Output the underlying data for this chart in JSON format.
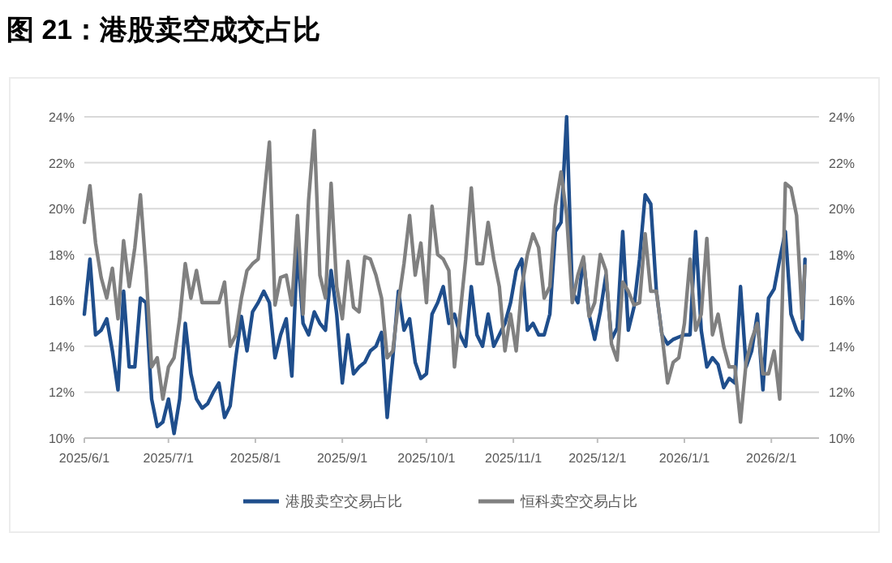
{
  "chart_data": {
    "type": "line",
    "title": "图 21：港股卖空成交占比",
    "x": [
      "2025-06-01",
      "2025-06-03",
      "2025-06-05",
      "2025-06-07",
      "2025-06-09",
      "2025-06-11",
      "2025-06-13",
      "2025-06-15",
      "2025-06-17",
      "2025-06-19",
      "2025-06-21",
      "2025-06-23",
      "2025-06-25",
      "2025-06-27",
      "2025-06-29",
      "2025-07-01",
      "2025-07-03",
      "2025-07-05",
      "2025-07-07",
      "2025-07-09",
      "2025-07-11",
      "2025-07-13",
      "2025-07-15",
      "2025-07-17",
      "2025-07-19",
      "2025-07-21",
      "2025-07-23",
      "2025-07-25",
      "2025-07-27",
      "2025-07-29",
      "2025-07-31",
      "2025-08-02",
      "2025-08-04",
      "2025-08-06",
      "2025-08-08",
      "2025-08-10",
      "2025-08-12",
      "2025-08-14",
      "2025-08-16",
      "2025-08-18",
      "2025-08-20",
      "2025-08-22",
      "2025-08-24",
      "2025-08-26",
      "2025-08-28",
      "2025-08-30",
      "2025-09-01",
      "2025-09-03",
      "2025-09-05",
      "2025-09-07",
      "2025-09-09",
      "2025-09-11",
      "2025-09-13",
      "2025-09-15",
      "2025-09-17",
      "2025-09-19",
      "2025-09-21",
      "2025-09-23",
      "2025-09-25",
      "2025-09-27",
      "2025-09-29",
      "2025-10-01",
      "2025-10-03",
      "2025-10-05",
      "2025-10-07",
      "2025-10-09",
      "2025-10-11",
      "2025-10-13",
      "2025-10-15",
      "2025-10-17",
      "2025-10-19",
      "2025-10-21",
      "2025-10-23",
      "2025-10-25",
      "2025-10-27",
      "2025-10-29",
      "2025-10-31",
      "2025-11-02",
      "2025-11-04",
      "2025-11-06",
      "2025-11-08",
      "2025-11-10",
      "2025-11-12",
      "2025-11-14",
      "2025-11-16",
      "2025-11-18",
      "2025-11-20",
      "2025-11-22",
      "2025-11-24",
      "2025-11-26",
      "2025-11-28",
      "2025-11-30",
      "2025-12-02",
      "2025-12-04",
      "2025-12-06",
      "2025-12-08",
      "2025-12-10",
      "2025-12-12",
      "2025-12-14",
      "2025-12-16",
      "2025-12-18",
      "2025-12-20",
      "2025-12-22",
      "2025-12-24",
      "2025-12-26",
      "2025-12-28",
      "2025-12-30",
      "2026-01-01",
      "2026-01-03",
      "2026-01-05",
      "2026-01-07",
      "2026-01-09",
      "2026-01-11",
      "2026-01-13",
      "2026-01-15",
      "2026-01-17",
      "2026-01-19",
      "2026-01-21",
      "2026-01-23",
      "2026-01-25",
      "2026-01-27",
      "2026-01-29",
      "2026-01-31",
      "2026-02-02",
      "2026-02-04",
      "2026-02-06",
      "2026-02-08",
      "2026-02-10",
      "2026-02-12",
      "2026-02-13"
    ],
    "series": [
      {
        "name": "港股卖空交易占比",
        "color": "#1f4e8c",
        "values": [
          15.4,
          17.8,
          14.5,
          14.7,
          15.2,
          13.8,
          12.1,
          16.4,
          13.1,
          13.1,
          16.1,
          15.9,
          11.7,
          10.5,
          10.7,
          11.7,
          10.2,
          11.7,
          15.0,
          12.8,
          11.7,
          11.3,
          11.5,
          12.0,
          12.4,
          10.9,
          11.4,
          13.5,
          15.3,
          13.8,
          15.5,
          15.9,
          16.4,
          15.9,
          13.5,
          14.5,
          15.2,
          12.7,
          18.3,
          15.0,
          14.5,
          15.5,
          15.0,
          14.7,
          17.3,
          15.4,
          12.4,
          14.5,
          12.8,
          13.1,
          13.3,
          13.8,
          14.0,
          14.6,
          10.9,
          13.5,
          16.4,
          14.7,
          15.2,
          13.3,
          12.6,
          12.8,
          15.4,
          15.9,
          16.6,
          15.0,
          15.4,
          14.5,
          14.0,
          16.6,
          14.5,
          14.0,
          15.4,
          14.0,
          14.5,
          15.0,
          15.9,
          17.3,
          17.8,
          14.7,
          15.0,
          14.5,
          14.5,
          15.4,
          19.0,
          19.4,
          24.0,
          16.4,
          15.9,
          17.8,
          15.4,
          14.3,
          15.5,
          17.1,
          14.3,
          14.8,
          19.0,
          14.7,
          15.7,
          17.8,
          20.6,
          20.2,
          16.4,
          14.5,
          14.1,
          14.3,
          14.4,
          14.5,
          14.5,
          19.0,
          14.7,
          13.1,
          13.5,
          13.2,
          12.2,
          12.6,
          12.4,
          16.6,
          13.1,
          13.8,
          15.4,
          12.1,
          16.1,
          16.5,
          17.8,
          19.0,
          15.4,
          14.7,
          14.3,
          17.8
        ]
      },
      {
        "name": "恒科卖空交易占比",
        "color": "#808080",
        "values": [
          19.4,
          21.0,
          18.5,
          17.0,
          16.1,
          17.4,
          15.2,
          18.6,
          16.6,
          18.3,
          20.6,
          17.3,
          13.1,
          13.5,
          11.7,
          13.1,
          13.5,
          15.2,
          17.6,
          16.1,
          17.3,
          15.9,
          15.9,
          15.9,
          15.9,
          16.8,
          14.0,
          14.5,
          16.1,
          17.3,
          17.6,
          17.8,
          20.4,
          22.9,
          15.8,
          17.0,
          17.1,
          15.8,
          19.7,
          15.4,
          20.4,
          23.4,
          17.1,
          16.1,
          21.1,
          16.6,
          15.2,
          17.7,
          15.7,
          15.5,
          17.9,
          17.8,
          17.1,
          16.1,
          13.5,
          13.8,
          15.9,
          17.6,
          19.7,
          17.1,
          18.5,
          15.9,
          20.1,
          18.0,
          17.8,
          17.3,
          13.1,
          15.4,
          17.8,
          20.9,
          17.6,
          17.6,
          19.4,
          17.8,
          16.6,
          13.8,
          15.4,
          13.8,
          16.6,
          18.0,
          18.9,
          18.3,
          16.1,
          16.6,
          20.1,
          21.6,
          19.7,
          15.9,
          17.1,
          17.9,
          15.3,
          15.9,
          18.0,
          17.3,
          14.1,
          13.4,
          16.8,
          16.4,
          15.8,
          15.9,
          18.9,
          16.4,
          16.4,
          14.5,
          12.4,
          13.3,
          13.5,
          15.0,
          17.8,
          14.7,
          15.4,
          18.7,
          14.5,
          15.4,
          14.0,
          13.1,
          13.1,
          10.7,
          13.3,
          14.3,
          15.0,
          12.8,
          12.8,
          13.8,
          11.7,
          21.1,
          20.9,
          19.7,
          15.2,
          17.5
        ]
      }
    ],
    "xlim": [
      "2025-06-01",
      "2026-02-18"
    ],
    "xticks": [
      {
        "value": "2025-06-01",
        "label": "2025/6/1"
      },
      {
        "value": "2025-07-01",
        "label": "2025/7/1"
      },
      {
        "value": "2025-08-01",
        "label": "2025/8/1"
      },
      {
        "value": "2025-09-01",
        "label": "2025/9/1"
      },
      {
        "value": "2025-10-01",
        "label": "2025/10/1"
      },
      {
        "value": "2025-11-01",
        "label": "2025/11/1"
      },
      {
        "value": "2025-12-01",
        "label": "2025/12/1"
      },
      {
        "value": "2026-01-01",
        "label": "2026/1/1"
      },
      {
        "value": "2026-02-01",
        "label": "2026/2/1"
      }
    ],
    "ylim": [
      10,
      24
    ],
    "yticks": [
      {
        "value": 10,
        "label": "10%"
      },
      {
        "value": 12,
        "label": "12%"
      },
      {
        "value": 14,
        "label": "14%"
      },
      {
        "value": 16,
        "label": "16%"
      },
      {
        "value": 18,
        "label": "18%"
      },
      {
        "value": 20,
        "label": "20%"
      },
      {
        "value": 22,
        "label": "22%"
      },
      {
        "value": 24,
        "label": "24%"
      }
    ],
    "y2lim": [
      10,
      24
    ],
    "y2ticks": [
      {
        "value": 10,
        "label": "10%"
      },
      {
        "value": 12,
        "label": "12%"
      },
      {
        "value": 14,
        "label": "14%"
      },
      {
        "value": 16,
        "label": "16%"
      },
      {
        "value": 18,
        "label": "18%"
      },
      {
        "value": 20,
        "label": "20%"
      },
      {
        "value": 22,
        "label": "22%"
      },
      {
        "value": 24,
        "label": "24%"
      }
    ],
    "grid": "y",
    "legend": "bottom",
    "line_style": "solid",
    "marker": "none"
  }
}
